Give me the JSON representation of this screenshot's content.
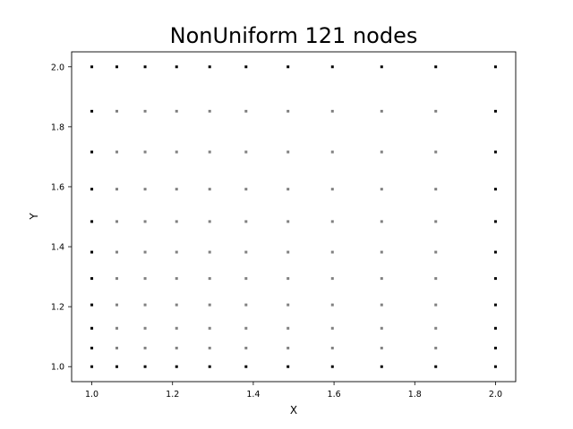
{
  "chart_data": {
    "type": "scatter",
    "title": "NonUniform 121 nodes",
    "xlabel": "X",
    "ylabel": "Y",
    "xlim": [
      0.95,
      2.05
    ],
    "ylim": [
      0.95,
      2.05
    ],
    "xticks": [
      "1.0",
      "1.2",
      "1.4",
      "1.6",
      "1.8",
      "2.0"
    ],
    "yticks": [
      "1.0",
      "1.2",
      "1.4",
      "1.6",
      "1.8",
      "2.0"
    ],
    "grid": false,
    "legend": "none",
    "x_nodes": [
      1.0,
      1.062,
      1.132,
      1.21,
      1.292,
      1.382,
      1.486,
      1.596,
      1.718,
      1.852,
      2.0
    ],
    "y_nodes": [
      1.0,
      1.062,
      1.128,
      1.206,
      1.294,
      1.382,
      1.484,
      1.592,
      1.716,
      1.852,
      2.0
    ],
    "series": [
      {
        "role": "boundary",
        "color": "#000000"
      },
      {
        "role": "interior",
        "color": "#808080"
      }
    ]
  }
}
